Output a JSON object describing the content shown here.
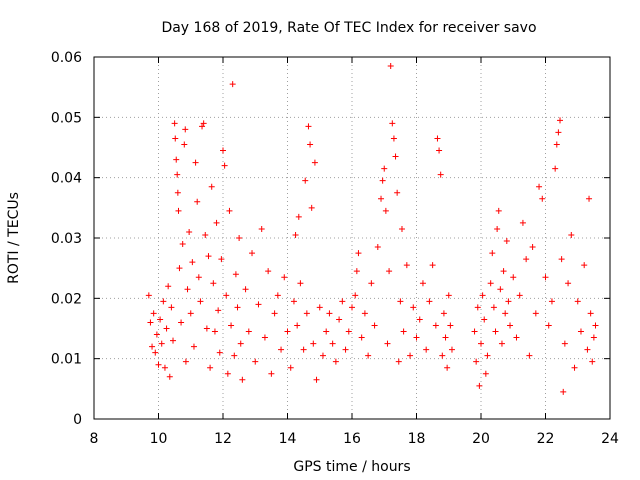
{
  "chart_data": {
    "type": "scatter",
    "title": "Day 168 of 2019, Rate Of TEC Index for receiver savo",
    "xlabel": "GPS time / hours",
    "ylabel": "ROTI / TECUs",
    "xlim": [
      8,
      24
    ],
    "ylim": [
      0,
      0.06
    ],
    "x_ticks": [
      8,
      10,
      12,
      14,
      16,
      18,
      20,
      22,
      24
    ],
    "x_tick_labels": [
      "8",
      "10",
      "12",
      "14",
      "16",
      "18",
      "20",
      "22",
      "24"
    ],
    "y_ticks": [
      0,
      0.01,
      0.02,
      0.03,
      0.04,
      0.05,
      0.06
    ],
    "y_tick_labels": [
      "0",
      "0.01",
      "0.02",
      "0.03",
      "0.04",
      "0.05",
      "0.06"
    ],
    "grid": true,
    "marker": "+",
    "color": "#ff0000",
    "series": [
      {
        "name": "ROTI",
        "points": [
          [
            9.7,
            0.0205
          ],
          [
            9.75,
            0.016
          ],
          [
            9.8,
            0.012
          ],
          [
            9.85,
            0.0175
          ],
          [
            9.9,
            0.011
          ],
          [
            9.95,
            0.014
          ],
          [
            10.0,
            0.009
          ],
          [
            10.05,
            0.0165
          ],
          [
            10.1,
            0.0125
          ],
          [
            10.15,
            0.0195
          ],
          [
            10.2,
            0.0085
          ],
          [
            10.25,
            0.015
          ],
          [
            10.3,
            0.022
          ],
          [
            10.35,
            0.007
          ],
          [
            10.4,
            0.0185
          ],
          [
            10.45,
            0.013
          ],
          [
            10.5,
            0.049
          ],
          [
            10.52,
            0.0465
          ],
          [
            10.55,
            0.043
          ],
          [
            10.58,
            0.0405
          ],
          [
            10.6,
            0.0375
          ],
          [
            10.62,
            0.0345
          ],
          [
            10.65,
            0.025
          ],
          [
            10.7,
            0.016
          ],
          [
            10.75,
            0.029
          ],
          [
            10.8,
            0.0455
          ],
          [
            10.83,
            0.048
          ],
          [
            10.85,
            0.0095
          ],
          [
            10.9,
            0.0215
          ],
          [
            10.95,
            0.031
          ],
          [
            11.0,
            0.0175
          ],
          [
            11.05,
            0.026
          ],
          [
            11.1,
            0.012
          ],
          [
            11.15,
            0.0425
          ],
          [
            11.2,
            0.036
          ],
          [
            11.25,
            0.0235
          ],
          [
            11.3,
            0.0195
          ],
          [
            11.35,
            0.0485
          ],
          [
            11.4,
            0.049
          ],
          [
            11.45,
            0.0305
          ],
          [
            11.5,
            0.015
          ],
          [
            11.55,
            0.027
          ],
          [
            11.6,
            0.0085
          ],
          [
            11.65,
            0.0385
          ],
          [
            11.7,
            0.0225
          ],
          [
            11.75,
            0.0145
          ],
          [
            11.8,
            0.0325
          ],
          [
            11.85,
            0.018
          ],
          [
            11.9,
            0.011
          ],
          [
            11.95,
            0.0265
          ],
          [
            12.0,
            0.0445
          ],
          [
            12.05,
            0.042
          ],
          [
            12.1,
            0.0205
          ],
          [
            12.15,
            0.0075
          ],
          [
            12.2,
            0.0345
          ],
          [
            12.25,
            0.0155
          ],
          [
            12.3,
            0.0555
          ],
          [
            12.35,
            0.0105
          ],
          [
            12.4,
            0.024
          ],
          [
            12.45,
            0.0185
          ],
          [
            12.5,
            0.03
          ],
          [
            12.55,
            0.0125
          ],
          [
            12.6,
            0.0065
          ],
          [
            12.7,
            0.0215
          ],
          [
            12.8,
            0.0145
          ],
          [
            12.9,
            0.0275
          ],
          [
            13.0,
            0.0095
          ],
          [
            13.1,
            0.019
          ],
          [
            13.2,
            0.0315
          ],
          [
            13.3,
            0.0135
          ],
          [
            13.4,
            0.0245
          ],
          [
            13.5,
            0.0075
          ],
          [
            13.6,
            0.0175
          ],
          [
            13.7,
            0.0205
          ],
          [
            13.8,
            0.0115
          ],
          [
            13.9,
            0.0235
          ],
          [
            14.0,
            0.0145
          ],
          [
            14.1,
            0.0085
          ],
          [
            14.2,
            0.0195
          ],
          [
            14.25,
            0.0305
          ],
          [
            14.3,
            0.0155
          ],
          [
            14.35,
            0.0335
          ],
          [
            14.4,
            0.0225
          ],
          [
            14.5,
            0.0115
          ],
          [
            14.55,
            0.0395
          ],
          [
            14.6,
            0.0175
          ],
          [
            14.65,
            0.0485
          ],
          [
            14.7,
            0.0455
          ],
          [
            14.75,
            0.035
          ],
          [
            14.8,
            0.0125
          ],
          [
            14.85,
            0.0425
          ],
          [
            14.9,
            0.0065
          ],
          [
            15.0,
            0.0185
          ],
          [
            15.1,
            0.0105
          ],
          [
            15.2,
            0.0145
          ],
          [
            15.3,
            0.0175
          ],
          [
            15.4,
            0.0125
          ],
          [
            15.5,
            0.0095
          ],
          [
            15.6,
            0.0165
          ],
          [
            15.7,
            0.0195
          ],
          [
            15.8,
            0.0115
          ],
          [
            15.9,
            0.0145
          ],
          [
            16.0,
            0.0185
          ],
          [
            16.1,
            0.0205
          ],
          [
            16.15,
            0.0245
          ],
          [
            16.2,
            0.0275
          ],
          [
            16.3,
            0.0135
          ],
          [
            16.4,
            0.0175
          ],
          [
            16.5,
            0.0105
          ],
          [
            16.6,
            0.0225
          ],
          [
            16.7,
            0.0155
          ],
          [
            16.8,
            0.0285
          ],
          [
            16.9,
            0.0365
          ],
          [
            16.95,
            0.0395
          ],
          [
            17.0,
            0.0415
          ],
          [
            17.05,
            0.0345
          ],
          [
            17.1,
            0.0125
          ],
          [
            17.15,
            0.0245
          ],
          [
            17.2,
            0.0585
          ],
          [
            17.25,
            0.049
          ],
          [
            17.3,
            0.0465
          ],
          [
            17.35,
            0.0435
          ],
          [
            17.4,
            0.0375
          ],
          [
            17.45,
            0.0095
          ],
          [
            17.5,
            0.0195
          ],
          [
            17.55,
            0.0315
          ],
          [
            17.6,
            0.0145
          ],
          [
            17.7,
            0.0255
          ],
          [
            17.8,
            0.0105
          ],
          [
            17.9,
            0.0185
          ],
          [
            18.0,
            0.0135
          ],
          [
            18.1,
            0.0165
          ],
          [
            18.2,
            0.0225
          ],
          [
            18.3,
            0.0115
          ],
          [
            18.4,
            0.0195
          ],
          [
            18.5,
            0.0255
          ],
          [
            18.6,
            0.0155
          ],
          [
            18.65,
            0.0465
          ],
          [
            18.7,
            0.0445
          ],
          [
            18.75,
            0.0405
          ],
          [
            18.8,
            0.0105
          ],
          [
            18.85,
            0.0175
          ],
          [
            18.9,
            0.0135
          ],
          [
            18.95,
            0.0085
          ],
          [
            19.0,
            0.0205
          ],
          [
            19.05,
            0.0155
          ],
          [
            19.1,
            0.0115
          ],
          [
            19.8,
            0.0145
          ],
          [
            19.85,
            0.0095
          ],
          [
            19.9,
            0.0185
          ],
          [
            19.95,
            0.0055
          ],
          [
            20.0,
            0.0125
          ],
          [
            20.05,
            0.0205
          ],
          [
            20.1,
            0.0165
          ],
          [
            20.15,
            0.0075
          ],
          [
            20.2,
            0.0105
          ],
          [
            20.3,
            0.0225
          ],
          [
            20.35,
            0.0275
          ],
          [
            20.4,
            0.0185
          ],
          [
            20.45,
            0.0145
          ],
          [
            20.5,
            0.0315
          ],
          [
            20.55,
            0.0345
          ],
          [
            20.6,
            0.0215
          ],
          [
            20.65,
            0.0125
          ],
          [
            20.7,
            0.0245
          ],
          [
            20.75,
            0.0175
          ],
          [
            20.8,
            0.0295
          ],
          [
            20.85,
            0.0195
          ],
          [
            20.9,
            0.0155
          ],
          [
            21.0,
            0.0235
          ],
          [
            21.1,
            0.0135
          ],
          [
            21.2,
            0.0205
          ],
          [
            21.3,
            0.0325
          ],
          [
            21.4,
            0.0265
          ],
          [
            21.5,
            0.0105
          ],
          [
            21.6,
            0.0285
          ],
          [
            21.7,
            0.0175
          ],
          [
            21.8,
            0.0385
          ],
          [
            21.9,
            0.0365
          ],
          [
            22.0,
            0.0235
          ],
          [
            22.1,
            0.0155
          ],
          [
            22.2,
            0.0195
          ],
          [
            22.3,
            0.0415
          ],
          [
            22.35,
            0.0455
          ],
          [
            22.4,
            0.0475
          ],
          [
            22.45,
            0.0495
          ],
          [
            22.5,
            0.0265
          ],
          [
            22.55,
            0.0045
          ],
          [
            22.6,
            0.0125
          ],
          [
            22.7,
            0.0225
          ],
          [
            22.8,
            0.0305
          ],
          [
            22.9,
            0.0085
          ],
          [
            23.0,
            0.0195
          ],
          [
            23.1,
            0.0145
          ],
          [
            23.2,
            0.0255
          ],
          [
            23.3,
            0.0115
          ],
          [
            23.35,
            0.0365
          ],
          [
            23.4,
            0.0175
          ],
          [
            23.45,
            0.0095
          ],
          [
            23.5,
            0.0135
          ],
          [
            23.55,
            0.0155
          ]
        ]
      }
    ]
  }
}
